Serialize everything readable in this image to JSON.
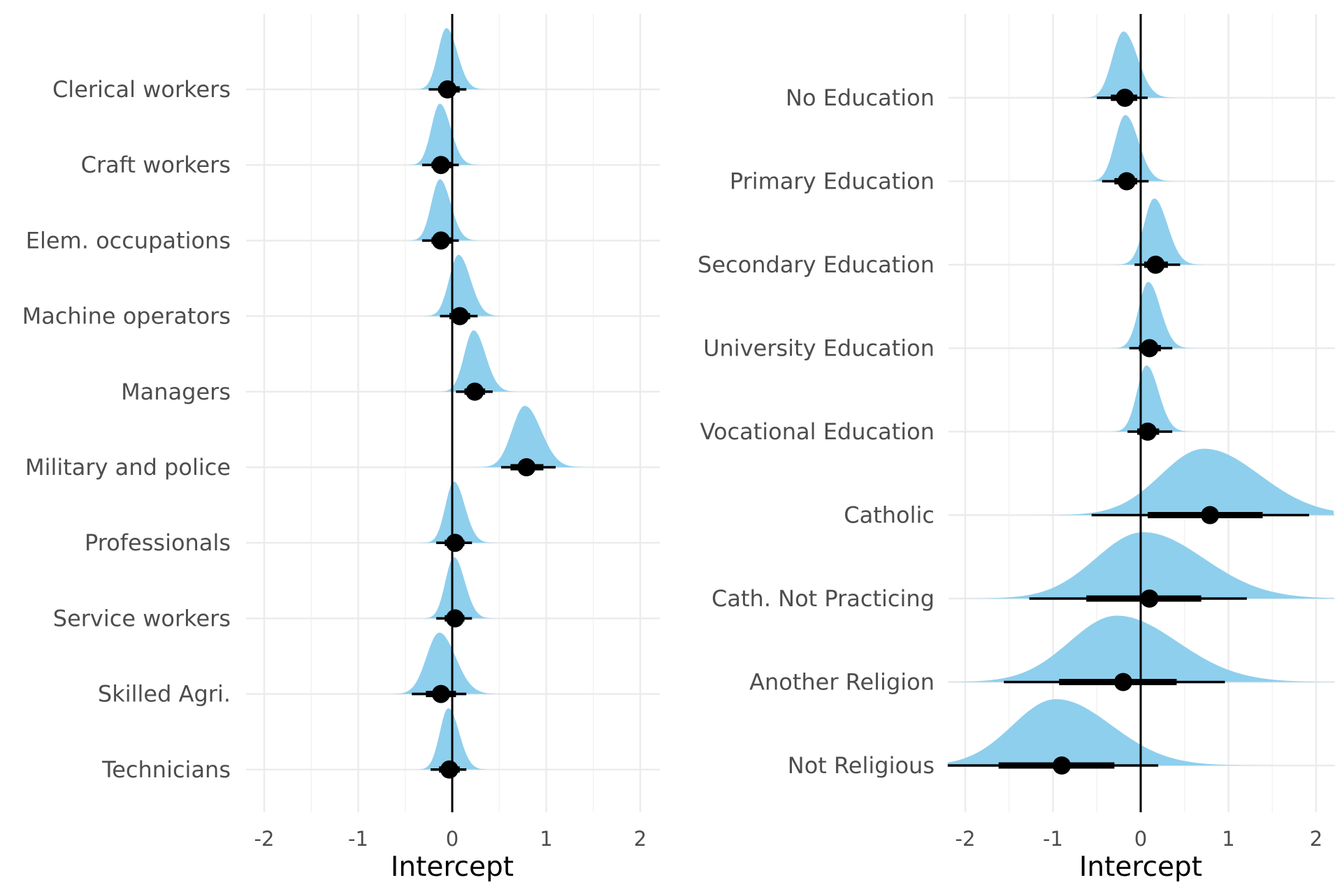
{
  "chart_data": [
    {
      "type": "ridge-interval",
      "title": "",
      "xlabel": "Intercept",
      "ylabel": "",
      "xlim": [
        -2.2,
        2.2
      ],
      "xticks": [
        -2,
        -1,
        0,
        1,
        2
      ],
      "xtick_labels": [
        "-2",
        "-1",
        "0",
        "1",
        "2"
      ],
      "reference_line_x": 0,
      "grid": true,
      "density_color": "#8ecfed",
      "interval_color": "#000000",
      "categories": [
        "Clerical workers",
        "Craft workers",
        "Elem. occupations",
        "Machine operators",
        "Managers",
        "Military and police",
        "Professionals",
        "Service workers",
        "Skilled Agri.",
        "Technicians"
      ],
      "series": [
        {
          "category": "Clerical workers",
          "median": -0.05,
          "ci66": [
            -0.15,
            0.08
          ],
          "ci95": [
            -0.25,
            0.15
          ],
          "sd": 0.1
        },
        {
          "category": "Craft workers",
          "median": -0.12,
          "ci66": [
            -0.22,
            0.0
          ],
          "ci95": [
            -0.32,
            0.07
          ],
          "sd": 0.1
        },
        {
          "category": "Elem. occupations",
          "median": -0.12,
          "ci66": [
            -0.22,
            0.0
          ],
          "ci95": [
            -0.32,
            0.07
          ],
          "sd": 0.1
        },
        {
          "category": "Machine operators",
          "median": 0.08,
          "ci66": [
            -0.03,
            0.19
          ],
          "ci95": [
            -0.13,
            0.27
          ],
          "sd": 0.11
        },
        {
          "category": "Managers",
          "median": 0.24,
          "ci66": [
            0.13,
            0.35
          ],
          "ci95": [
            0.04,
            0.43
          ],
          "sd": 0.11
        },
        {
          "category": "Military and police",
          "median": 0.79,
          "ci66": [
            0.62,
            0.97
          ],
          "ci95": [
            0.52,
            1.1
          ],
          "sd": 0.15
        },
        {
          "category": "Professionals",
          "median": 0.03,
          "ci66": [
            -0.08,
            0.13
          ],
          "ci95": [
            -0.17,
            0.21
          ],
          "sd": 0.1
        },
        {
          "category": "Service workers",
          "median": 0.03,
          "ci66": [
            -0.08,
            0.13
          ],
          "ci95": [
            -0.17,
            0.21
          ],
          "sd": 0.1
        },
        {
          "category": "Skilled Agri.",
          "median": -0.12,
          "ci66": [
            -0.28,
            0.04
          ],
          "ci95": [
            -0.43,
            0.15
          ],
          "sd": 0.15
        },
        {
          "category": "Technicians",
          "median": -0.03,
          "ci66": [
            -0.14,
            0.08
          ],
          "ci95": [
            -0.23,
            0.15
          ],
          "sd": 0.1
        }
      ]
    },
    {
      "type": "ridge-interval",
      "title": "",
      "xlabel": "Intercept",
      "ylabel": "",
      "xlim": [
        -2.2,
        2.2
      ],
      "xticks": [
        -2,
        -1,
        0,
        1,
        2
      ],
      "xtick_labels": [
        "-2",
        "-1",
        "0",
        "1",
        "2"
      ],
      "reference_line_x": 0,
      "grid": true,
      "density_color": "#8ecfed",
      "interval_color": "#000000",
      "categories": [
        "No Education",
        "Primary Education",
        "Secondary Education",
        "University Education",
        "Vocational Education",
        "Catholic",
        "Cath. Not Practicing",
        "Another Religion",
        "Not Religious"
      ],
      "series": [
        {
          "category": "No Education",
          "median": -0.18,
          "ci66": [
            -0.34,
            -0.04
          ],
          "ci95": [
            -0.5,
            0.08
          ],
          "sd": 0.14
        },
        {
          "category": "Primary Education",
          "median": -0.16,
          "ci66": [
            -0.3,
            -0.04
          ],
          "ci95": [
            -0.44,
            0.09
          ],
          "sd": 0.13
        },
        {
          "category": "Secondary Education",
          "median": 0.17,
          "ci66": [
            0.04,
            0.31
          ],
          "ci95": [
            -0.07,
            0.45
          ],
          "sd": 0.13
        },
        {
          "category": "University Education",
          "median": 0.1,
          "ci66": [
            -0.02,
            0.23
          ],
          "ci95": [
            -0.13,
            0.36
          ],
          "sd": 0.12
        },
        {
          "category": "Vocational Education",
          "median": 0.08,
          "ci66": [
            -0.04,
            0.21
          ],
          "ci95": [
            -0.15,
            0.36
          ],
          "sd": 0.12
        },
        {
          "category": "Catholic",
          "median": 0.79,
          "ci66": [
            0.08,
            1.39
          ],
          "ci95": [
            -0.56,
            1.92
          ],
          "sd": 0.55
        },
        {
          "category": "Cath. Not Practicing",
          "median": 0.1,
          "ci66": [
            -0.62,
            0.69
          ],
          "ci95": [
            -1.27,
            1.21
          ],
          "sd": 0.6
        },
        {
          "category": "Another Religion",
          "median": -0.2,
          "ci66": [
            -0.93,
            0.41
          ],
          "ci95": [
            -1.56,
            0.96
          ],
          "sd": 0.6
        },
        {
          "category": "Not Religious",
          "median": -0.9,
          "ci66": [
            -1.62,
            -0.3
          ],
          "ci95": [
            -2.2,
            0.2
          ],
          "sd": 0.55
        }
      ]
    }
  ]
}
